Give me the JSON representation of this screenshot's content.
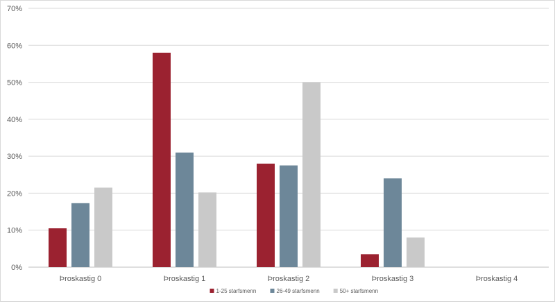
{
  "chart_data": {
    "type": "bar",
    "title": "",
    "xlabel": "",
    "ylabel": "",
    "categories": [
      "Þroskastig 0",
      "Þroskastig 1",
      "Þroskastig 2",
      "Þroskastig 3",
      "Þroskastig 4"
    ],
    "series": [
      {
        "name": "1-25 starfsmenn",
        "color": "#9b2230",
        "values": [
          10.5,
          58,
          28,
          3.5,
          0
        ]
      },
      {
        "name": "26-49 starfsmenn",
        "color": "#6d8799",
        "values": [
          17.3,
          31,
          27.5,
          24,
          0
        ]
      },
      {
        "name": "50+ starfsmenn",
        "color": "#c9c9c9",
        "values": [
          21.5,
          20.2,
          50,
          8,
          0
        ]
      }
    ],
    "ylim": [
      0,
      70
    ],
    "yticks": [
      "0%",
      "10%",
      "20%",
      "30%",
      "40%",
      "50%",
      "60%",
      "70%"
    ],
    "grid": true,
    "legend_position": "bottom"
  }
}
